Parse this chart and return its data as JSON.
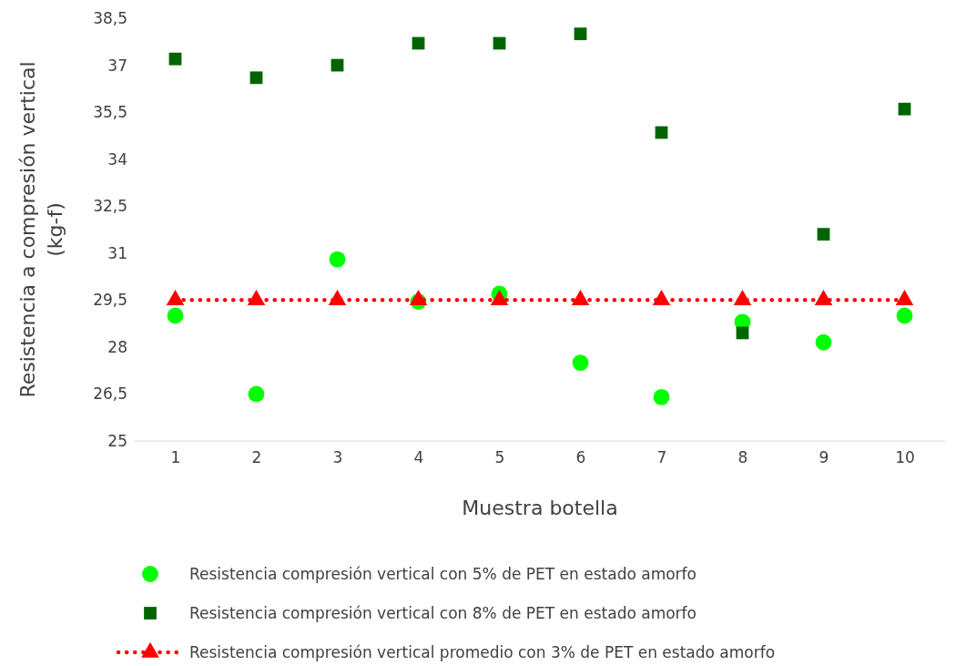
{
  "chart_data": {
    "type": "scatter",
    "xlabel": "Muestra botella",
    "ylabel": "Resistencia a compresión vertical\n(kg-f)",
    "categories": [
      "1",
      "2",
      "3",
      "4",
      "5",
      "6",
      "7",
      "8",
      "9",
      "10"
    ],
    "ylim": [
      25,
      38.5
    ],
    "yticks": [
      25,
      {
        "value": 26.5,
        "label": "26,5"
      },
      28,
      {
        "value": 29.5,
        "label": "29,5"
      },
      31,
      {
        "value": 32.5,
        "label": "32,5"
      },
      34,
      {
        "value": 35.5,
        "label": "35,5"
      },
      37,
      {
        "value": 38.5,
        "label": "38,5"
      }
    ],
    "grid": false,
    "legend": "bottom",
    "series": [
      {
        "name": "Resistencia compresión vertical con 5% de PET en estado amorfo",
        "marker": "circle",
        "color": "#00ff00",
        "values": [
          29.0,
          26.5,
          30.8,
          29.45,
          29.7,
          27.5,
          26.4,
          28.8,
          28.15,
          29.0
        ]
      },
      {
        "name": "Resistencia compresión vertical con 8% de PET en estado amorfo",
        "marker": "square",
        "color": "#006400",
        "values": [
          37.2,
          36.6,
          37.0,
          37.7,
          37.7,
          38.0,
          34.85,
          28.45,
          31.6,
          35.6
        ]
      },
      {
        "name": "Resistencia compresión vertical promedio con 3% de PET en estado amorfo",
        "type": "line",
        "marker": "triangle",
        "line_style": "dotted",
        "color": "#ff0000",
        "values": [
          29.5,
          29.5,
          29.5,
          29.5,
          29.5,
          29.5,
          29.5,
          29.5,
          29.5,
          29.5
        ]
      }
    ]
  }
}
